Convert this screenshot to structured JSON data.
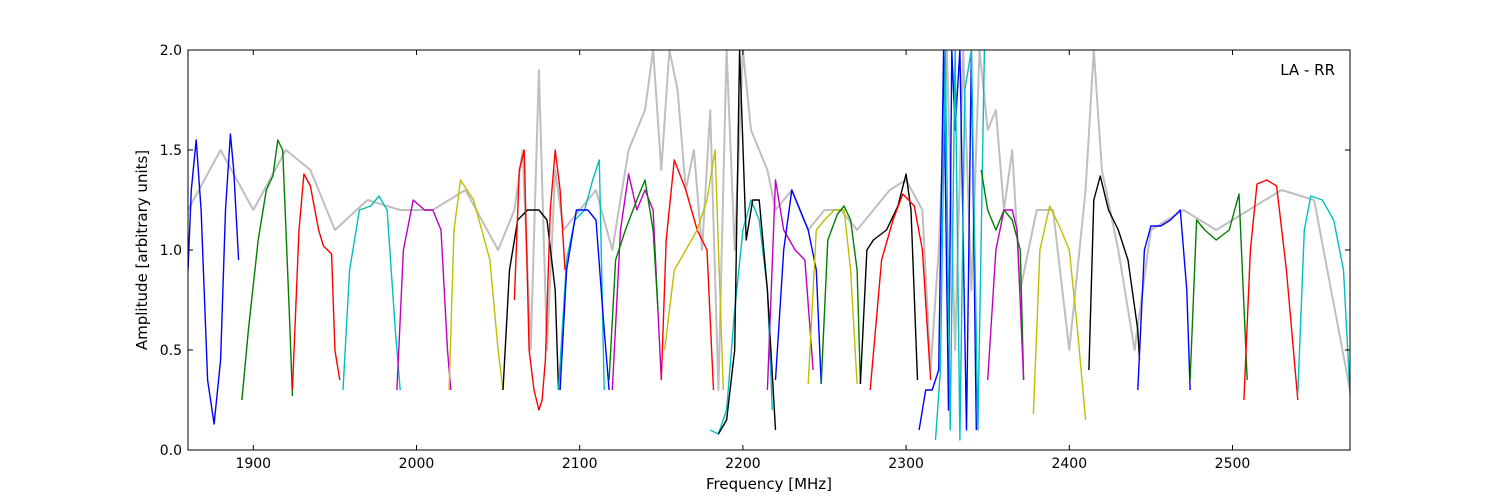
{
  "chart_data": {
    "type": "line",
    "title": "",
    "annotation": "LA - RR",
    "xlabel": "Frequency [MHz]",
    "ylabel": "Amplitude [arbitrary units]",
    "xlim": [
      1860,
      2572
    ],
    "ylim": [
      0.0,
      2.0
    ],
    "xticks": [
      1900,
      2000,
      2100,
      2200,
      2300,
      2400,
      2500
    ],
    "yticks": [
      0.0,
      0.5,
      1.0,
      1.5,
      2.0
    ],
    "xtick_labels": [
      "1900",
      "2000",
      "2100",
      "2200",
      "2300",
      "2400",
      "2500"
    ],
    "ytick_labels": [
      "0.0",
      "0.5",
      "1.0",
      "1.5",
      "2.0"
    ],
    "grid": false,
    "colors": {
      "reference": "#bfbfbf",
      "blue": "#0000ff",
      "green": "#007f00",
      "red": "#ff0000",
      "cyan": "#00bfbf",
      "magenta": "#bf00bf",
      "yellow": "#bfbf00",
      "black": "#000000"
    },
    "reference_series": {
      "name": "",
      "color": "#bfbfbf",
      "x": [
        1860,
        1880,
        1900,
        1920,
        1935,
        1950,
        1970,
        1990,
        2010,
        2030,
        2050,
        2060,
        2065,
        2070,
        2075,
        2080,
        2085,
        2090,
        2100,
        2110,
        2120,
        2130,
        2140,
        2145,
        2150,
        2155,
        2160,
        2165,
        2170,
        2175,
        2180,
        2185,
        2190,
        2195,
        2200,
        2205,
        2210,
        2215,
        2220,
        2230,
        2240,
        2250,
        2260,
        2270,
        2280,
        2290,
        2300,
        2310,
        2315,
        2320,
        2325,
        2330,
        2335,
        2340,
        2345,
        2350,
        2355,
        2360,
        2365,
        2370,
        2380,
        2390,
        2400,
        2410,
        2415,
        2420,
        2425,
        2430,
        2440,
        2450,
        2470,
        2490,
        2510,
        2530,
        2550,
        2572
      ],
      "y": [
        1.2,
        1.5,
        1.2,
        1.5,
        1.4,
        1.1,
        1.25,
        1.2,
        1.2,
        1.3,
        1.0,
        1.2,
        1.5,
        0.5,
        1.9,
        0.5,
        1.4,
        1.1,
        1.2,
        1.3,
        1.0,
        1.5,
        1.7,
        2.0,
        1.4,
        2.0,
        1.8,
        1.3,
        1.5,
        1.0,
        1.7,
        0.3,
        2.0,
        1.0,
        2.0,
        1.6,
        1.5,
        1.4,
        1.2,
        1.3,
        1.1,
        1.2,
        1.2,
        1.1,
        1.2,
        1.3,
        1.35,
        1.2,
        0.4,
        1.0,
        2.0,
        0.5,
        2.0,
        0.8,
        2.0,
        1.6,
        1.7,
        1.2,
        1.5,
        0.8,
        1.2,
        1.2,
        0.5,
        1.3,
        2.0,
        1.4,
        1.2,
        1.0,
        0.5,
        1.1,
        1.2,
        1.1,
        1.2,
        1.3,
        1.25,
        0.3
      ]
    },
    "series": [
      {
        "color": "#0000ff",
        "x": [
          1860,
          1862,
          1865,
          1868,
          1872,
          1876,
          1880,
          1883,
          1886,
          1888,
          1891
        ],
        "y": [
          0.9,
          1.3,
          1.55,
          1.2,
          0.35,
          0.13,
          0.45,
          1.2,
          1.58,
          1.4,
          0.95
        ]
      },
      {
        "color": "#007f00",
        "x": [
          1893,
          1897,
          1903,
          1908,
          1912,
          1915,
          1918,
          1922,
          1924
        ],
        "y": [
          0.25,
          0.6,
          1.05,
          1.3,
          1.37,
          1.55,
          1.5,
          0.7,
          0.27
        ]
      },
      {
        "color": "#ff0000",
        "x": [
          1924,
          1928,
          1931,
          1935,
          1940,
          1943,
          1948,
          1950,
          1953
        ],
        "y": [
          0.3,
          1.1,
          1.38,
          1.32,
          1.1,
          1.02,
          0.98,
          0.5,
          0.35
        ]
      },
      {
        "color": "#00bfbf",
        "x": [
          1955,
          1959,
          1965,
          1972,
          1977,
          1982,
          1987,
          1990
        ],
        "y": [
          0.3,
          0.9,
          1.2,
          1.22,
          1.27,
          1.2,
          0.6,
          0.3
        ]
      },
      {
        "color": "#bf00bf",
        "x": [
          1988,
          1992,
          1998,
          2005,
          2010,
          2015,
          2019,
          2021
        ],
        "y": [
          0.3,
          1.0,
          1.25,
          1.2,
          1.2,
          1.1,
          0.5,
          0.3
        ]
      },
      {
        "color": "#bfbf00",
        "x": [
          2020,
          2023,
          2027,
          2035,
          2045,
          2050,
          2053
        ],
        "y": [
          0.3,
          1.1,
          1.35,
          1.25,
          0.95,
          0.5,
          0.3
        ]
      },
      {
        "color": "#000000",
        "x": [
          2053,
          2057,
          2062,
          2068,
          2075,
          2080,
          2085,
          2087
        ],
        "y": [
          0.3,
          0.9,
          1.15,
          1.2,
          1.2,
          1.15,
          0.8,
          0.3
        ]
      },
      {
        "color": "#ff0000",
        "x": [
          2060,
          2063,
          2066,
          2069,
          2072,
          2075,
          2077,
          2079,
          2082,
          2085,
          2088,
          2091
        ],
        "y": [
          0.75,
          1.4,
          1.5,
          0.5,
          0.3,
          0.2,
          0.25,
          0.45,
          1.2,
          1.5,
          1.3,
          0.9
        ]
      },
      {
        "color": "#00bfbf",
        "x": [
          2087,
          2092,
          2097,
          2103,
          2108,
          2112,
          2115
        ],
        "y": [
          0.3,
          0.95,
          1.15,
          1.2,
          1.35,
          1.45,
          0.3
        ]
      },
      {
        "color": "#0000ff",
        "x": [
          2088,
          2092,
          2098,
          2105,
          2110,
          2115,
          2118
        ],
        "y": [
          0.3,
          0.9,
          1.2,
          1.2,
          1.15,
          0.6,
          0.3
        ]
      },
      {
        "color": "#bf00bf",
        "x": [
          2120,
          2125,
          2130,
          2135,
          2140,
          2145,
          2150
        ],
        "y": [
          0.3,
          1.1,
          1.38,
          1.2,
          1.3,
          1.2,
          0.35
        ]
      },
      {
        "color": "#007f00",
        "x": [
          2118,
          2122,
          2128,
          2135,
          2140,
          2145,
          2148
        ],
        "y": [
          0.35,
          0.95,
          1.1,
          1.25,
          1.35,
          1.1,
          0.7
        ]
      },
      {
        "color": "#ff0000",
        "x": [
          2150,
          2153,
          2158,
          2165,
          2172,
          2178,
          2182
        ],
        "y": [
          0.35,
          1.05,
          1.45,
          1.3,
          1.1,
          1.0,
          0.3
        ]
      },
      {
        "color": "#bfbf00",
        "x": [
          2152,
          2158,
          2165,
          2172,
          2178,
          2183,
          2188
        ],
        "y": [
          0.5,
          0.9,
          1.0,
          1.1,
          1.25,
          1.5,
          0.3
        ]
      },
      {
        "color": "#00bfbf",
        "x": [
          2180,
          2185,
          2190,
          2195,
          2200,
          2205,
          2210,
          2215,
          2218
        ],
        "y": [
          0.1,
          0.08,
          0.2,
          0.7,
          1.1,
          1.25,
          1.15,
          0.8,
          0.2
        ]
      },
      {
        "color": "#000000",
        "x": [
          2185,
          2190,
          2195,
          2198,
          2202,
          2206,
          2210,
          2215,
          2220
        ],
        "y": [
          0.08,
          0.15,
          0.5,
          2.0,
          1.05,
          1.25,
          1.25,
          0.8,
          0.1
        ]
      },
      {
        "color": "#bf00bf",
        "x": [
          2215,
          2220,
          2225,
          2232,
          2238,
          2243
        ],
        "y": [
          0.3,
          1.35,
          1.1,
          1.0,
          0.95,
          0.4
        ]
      },
      {
        "color": "#0000ff",
        "x": [
          2220,
          2225,
          2230,
          2235,
          2240,
          2245,
          2248
        ],
        "y": [
          0.35,
          1.0,
          1.3,
          1.2,
          1.1,
          0.9,
          0.33
        ]
      },
      {
        "color": "#bfbf00",
        "x": [
          2240,
          2245,
          2250,
          2256,
          2262,
          2266,
          2270
        ],
        "y": [
          0.33,
          1.1,
          1.15,
          1.2,
          1.2,
          0.9,
          0.33
        ]
      },
      {
        "color": "#007f00",
        "x": [
          2248,
          2252,
          2258,
          2262,
          2266,
          2270,
          2272
        ],
        "y": [
          0.33,
          1.05,
          1.18,
          1.22,
          1.15,
          0.9,
          0.33
        ]
      },
      {
        "color": "#000000",
        "x": [
          2272,
          2276,
          2280,
          2288,
          2295,
          2300,
          2303,
          2307
        ],
        "y": [
          0.33,
          1.0,
          1.05,
          1.1,
          1.22,
          1.38,
          1.2,
          0.35
        ]
      },
      {
        "color": "#ff0000",
        "x": [
          2278,
          2285,
          2292,
          2298,
          2305,
          2310,
          2315
        ],
        "y": [
          0.3,
          0.95,
          1.15,
          1.28,
          1.22,
          1.0,
          0.35
        ]
      },
      {
        "color": "#0000ff",
        "x": [
          2308,
          2312,
          2316,
          2320,
          2323,
          2326,
          2328,
          2330,
          2333,
          2337,
          2340,
          2343
        ],
        "y": [
          0.1,
          0.3,
          0.3,
          0.4,
          2.0,
          0.2,
          2.0,
          1.6,
          2.0,
          0.1,
          2.0,
          0.1
        ]
      },
      {
        "color": "#00bfbf",
        "x": [
          2318,
          2321,
          2324,
          2327,
          2330,
          2333,
          2336,
          2340,
          2344,
          2348
        ],
        "y": [
          0.05,
          0.4,
          2.0,
          0.1,
          2.0,
          0.05,
          1.8,
          2.0,
          0.1,
          2.0
        ]
      },
      {
        "color": "#007f00",
        "x": [
          2346,
          2350,
          2355,
          2360,
          2365,
          2370,
          2372
        ],
        "y": [
          1.4,
          1.2,
          1.1,
          1.2,
          1.15,
          1.0,
          0.35
        ]
      },
      {
        "color": "#bf00bf",
        "x": [
          2350,
          2355,
          2360,
          2365,
          2368,
          2372
        ],
        "y": [
          0.35,
          1.0,
          1.2,
          1.2,
          1.1,
          0.35
        ]
      },
      {
        "color": "#bfbf00",
        "x": [
          2378,
          2382,
          2388,
          2395,
          2400,
          2405,
          2410
        ],
        "y": [
          0.18,
          1.0,
          1.22,
          1.1,
          1.0,
          0.6,
          0.15
        ]
      },
      {
        "color": "#000000",
        "x": [
          2412,
          2415,
          2419,
          2424,
          2430,
          2436,
          2442,
          2443
        ],
        "y": [
          0.4,
          1.25,
          1.37,
          1.2,
          1.1,
          0.95,
          0.6,
          0.45
        ]
      },
      {
        "color": "#0000ff",
        "x": [
          2442,
          2446,
          2450,
          2456,
          2462,
          2468,
          2472,
          2474
        ],
        "y": [
          0.3,
          1.0,
          1.12,
          1.12,
          1.15,
          1.2,
          0.8,
          0.3
        ]
      },
      {
        "color": "#007f00",
        "x": [
          2474,
          2478,
          2483,
          2490,
          2498,
          2504,
          2509
        ],
        "y": [
          0.35,
          1.15,
          1.1,
          1.05,
          1.1,
          1.28,
          0.35
        ]
      },
      {
        "color": "#ff0000",
        "x": [
          2507,
          2511,
          2515,
          2521,
          2527,
          2533,
          2540
        ],
        "y": [
          0.25,
          1.0,
          1.33,
          1.35,
          1.32,
          0.9,
          0.25
        ]
      },
      {
        "color": "#00bfbf",
        "x": [
          2540,
          2544,
          2548,
          2555,
          2562,
          2568,
          2572
        ],
        "y": [
          0.28,
          1.1,
          1.27,
          1.25,
          1.15,
          0.9,
          0.28
        ]
      }
    ]
  }
}
